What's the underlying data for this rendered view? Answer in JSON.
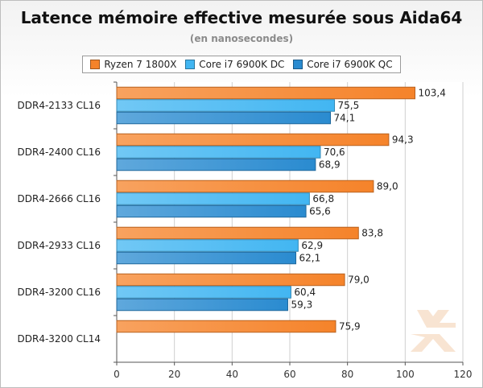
{
  "chart_data": {
    "type": "bar",
    "orientation": "horizontal",
    "title": "Latence mémoire effective mesurée sous Aida64",
    "subtitle": "(en nanosecondes)",
    "categories": [
      "DDR4-2133 CL16",
      "DDR4-2400 CL16",
      "DDR4-2666 CL16",
      "DDR4-2933 CL16",
      "DDR4-3200 CL16",
      "DDR4-3200 CL14"
    ],
    "series": [
      {
        "name": "Ryzen 7 1800X",
        "color": "#f5832a",
        "values": [
          103.4,
          94.3,
          89.0,
          83.8,
          79.0,
          75.9
        ],
        "labels": [
          "103,4",
          "94,3",
          "89,0",
          "83,8",
          "79,0",
          "75,9"
        ]
      },
      {
        "name": "Core i7 6900K DC",
        "color": "#42b6f2",
        "values": [
          75.5,
          70.6,
          66.8,
          62.9,
          60.4,
          null
        ],
        "labels": [
          "75,5",
          "70,6",
          "66,8",
          "62,9",
          "60,4",
          null
        ]
      },
      {
        "name": "Core i7 6900K QC",
        "color": "#2a8bd0",
        "values": [
          74.1,
          68.9,
          65.6,
          62.1,
          59.3,
          null
        ],
        "labels": [
          "74,1",
          "68,9",
          "65,6",
          "62,1",
          "59,3",
          null
        ]
      }
    ],
    "xlim": [
      0,
      120
    ],
    "xticks": [
      0,
      20,
      40,
      60,
      80,
      100,
      120
    ],
    "grid": true,
    "legend_position": "top"
  }
}
